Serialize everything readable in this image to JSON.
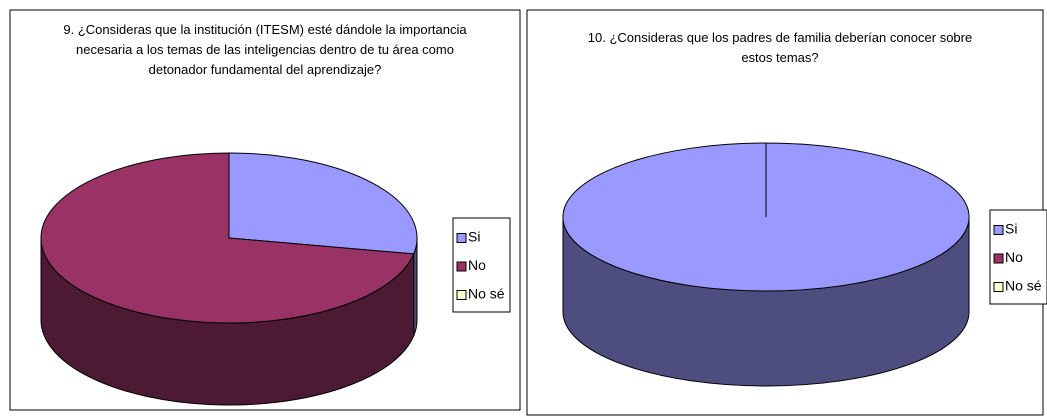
{
  "chart_data": [
    {
      "type": "pie3d",
      "title": "9. ¿Consideras que la institución (ITESM) esté dándole la importancia necesaria a los temas de las inteligencias dentro de tu área como detonador fundamental del aprendizaje?",
      "categories": [
        "Si",
        "No",
        "No sé"
      ],
      "values": [
        28,
        72,
        0
      ],
      "colors": [
        "#9999ff",
        "#993366",
        "#ffffcc"
      ],
      "legend": "right"
    },
    {
      "type": "pie3d",
      "title": "10. ¿Consideras que los padres de familia deberían conocer sobre estos temas?",
      "categories": [
        "Si",
        "No",
        "No sé"
      ],
      "values": [
        100,
        0,
        0
      ],
      "colors": [
        "#9999ff",
        "#993366",
        "#ffffcc"
      ],
      "legend": "right"
    }
  ]
}
